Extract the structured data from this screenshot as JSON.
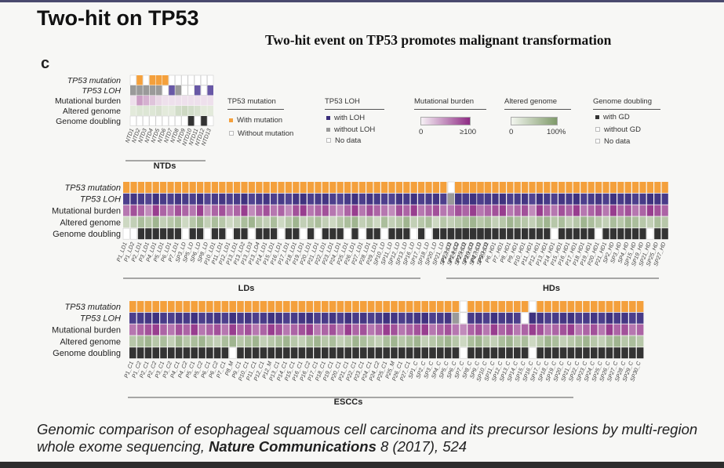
{
  "slide": {
    "title": "Two-hit on TP53",
    "subtitle": "Two-hit event on TP53 promotes malignant transformation",
    "panel_letter": "c"
  },
  "row_labels": [
    "TP53 mutation",
    "TP53 LOH",
    "Mutational burden",
    "Altered genome",
    "Genome doubling"
  ],
  "colors": {
    "mutation": "#f4a03c",
    "loh_dark": "#3a2d7a",
    "loh_gray": "#9a9a9a",
    "burden_low": "#f3eaf1",
    "burden_high": "#8e2b84",
    "altered_low": "#eef3e8",
    "altered_high": "#7f9a6a",
    "gd_dark": "#333333",
    "empty": "#eeeeee"
  },
  "groups": [
    {
      "name": "NTDs",
      "samples": [
        "NTD1",
        "NTD2",
        "NTD3",
        "NTD4",
        "NTD5",
        "NTD6",
        "NTD7",
        "NTD8",
        "NTD9",
        "NTD10",
        "NTD11",
        "NTD12",
        "NTD13"
      ],
      "mutation": [
        0,
        1,
        0,
        1,
        1,
        1,
        0,
        0,
        0,
        0,
        0,
        0,
        0
      ],
      "loh": [
        2,
        2,
        2,
        2,
        2,
        0,
        1,
        2,
        0,
        0,
        1,
        0,
        1
      ],
      "burden": [
        0.05,
        0.4,
        0.3,
        0.2,
        0.1,
        0.05,
        0.05,
        0.05,
        0.05,
        0.05,
        0.05,
        0.05,
        0.05
      ],
      "altered": [
        0.1,
        0.15,
        0.15,
        0.15,
        0.2,
        0.1,
        0.1,
        0.25,
        0.3,
        0.25,
        0.2,
        0.1,
        0.1
      ],
      "gd": [
        0,
        0,
        0,
        0,
        0,
        0,
        0,
        0,
        0,
        1,
        0,
        1,
        0
      ]
    },
    {
      "name": "LDs",
      "samples": [
        "P1_LD1",
        "P1_LD2",
        "P2_LD1",
        "P3_LD1",
        "P4_LD1",
        "P5_LD1",
        "P6_LD1",
        "P7_LD1",
        "SP3_LD",
        "SP5_LD",
        "SP6_LD",
        "SP8_LD",
        "P10_LD1",
        "P11_LD1",
        "P12_LD1",
        "P13_LD1",
        "P13_LD2",
        "P13_LD3",
        "P13_LD4",
        "P14_LD1",
        "P15_LD1",
        "P16_LD1",
        "P17_LD1",
        "P18_LD1",
        "P19_LD1",
        "P20_LD1",
        "P21_LD1",
        "P22_LD1",
        "P23_LD1",
        "P24_LD1",
        "P25_LD1",
        "P26_LD1",
        "P27_LD1",
        "P28_LD1",
        "P29_LD1",
        "SP10_LD",
        "SP11_LD",
        "SP12_LD",
        "SP13_LD",
        "SP16_LD",
        "SP17_LD",
        "SP18_LD",
        "SP20_LD",
        "SP21_LD",
        "SP22_LD",
        "SP24_LD",
        "SP25_LD",
        "SP26_LD",
        "SP27_LD",
        "SP30_LD"
      ],
      "mutation": [
        1,
        1,
        1,
        1,
        1,
        1,
        1,
        1,
        1,
        1,
        1,
        1,
        1,
        1,
        1,
        1,
        1,
        1,
        1,
        1,
        1,
        1,
        1,
        1,
        1,
        1,
        1,
        1,
        1,
        1,
        1,
        1,
        1,
        1,
        1,
        1,
        1,
        1,
        1,
        1,
        1,
        1,
        1,
        1,
        1,
        1,
        1,
        1,
        1,
        1
      ],
      "loh": [
        1,
        1,
        1,
        1,
        1,
        1,
        1,
        1,
        1,
        1,
        1,
        1,
        1,
        1,
        1,
        1,
        1,
        1,
        1,
        1,
        1,
        1,
        1,
        1,
        1,
        1,
        1,
        1,
        1,
        1,
        1,
        1,
        1,
        1,
        1,
        1,
        1,
        1,
        1,
        1,
        1,
        1,
        1,
        1,
        1,
        1,
        1,
        1,
        1,
        1
      ],
      "burden": [
        0.6,
        0.8,
        0.7,
        0.5,
        0.9,
        0.7,
        0.6,
        0.8,
        0.7,
        0.6,
        0.9,
        0.5,
        0.7,
        0.8,
        0.6,
        0.7,
        0.9,
        0.5,
        0.7,
        0.8,
        0.6,
        0.7,
        0.5,
        0.8,
        0.9,
        0.6,
        0.7,
        0.8,
        0.6,
        0.5,
        0.7,
        0.9,
        0.6,
        0.8,
        0.7,
        0.6,
        0.5,
        0.8,
        0.7,
        0.9,
        0.6,
        0.7,
        0.8,
        0.6,
        0.5,
        0.7,
        0.8,
        0.6,
        0.9,
        0.7
      ],
      "altered": [
        0.3,
        0.4,
        0.6,
        0.5,
        0.7,
        0.4,
        0.5,
        0.6,
        0.3,
        0.5,
        0.7,
        0.4,
        0.6,
        0.5,
        0.3,
        0.4,
        0.6,
        0.7,
        0.5,
        0.4,
        0.6,
        0.3,
        0.5,
        0.7,
        0.4,
        0.5,
        0.6,
        0.4,
        0.3,
        0.5,
        0.6,
        0.7,
        0.4,
        0.5,
        0.3,
        0.6,
        0.4,
        0.5,
        0.7,
        0.4,
        0.5,
        0.6,
        0.3,
        0.5,
        0.4,
        0.6,
        0.7,
        0.5,
        0.4,
        0.6
      ],
      "gd": [
        0,
        0,
        1,
        1,
        1,
        1,
        1,
        1,
        0,
        1,
        1,
        0,
        1,
        1,
        0,
        1,
        1,
        0,
        1,
        1,
        1,
        0,
        1,
        1,
        0,
        1,
        0,
        1,
        1,
        1,
        0,
        1,
        0,
        1,
        1,
        0,
        1,
        1,
        1,
        0,
        1,
        0,
        1,
        1,
        1,
        0,
        1,
        1,
        1,
        1
      ]
    },
    {
      "name": "HDs",
      "samples": [
        "P1_HD1",
        "P1_HD2",
        "P2_HD1",
        "P3_HD1",
        "P4_HD1",
        "P5_HD1",
        "P6_HD1",
        "P7_HD1",
        "P8_HD1",
        "P9_HD1",
        "P10_HD1",
        "P11_HD1",
        "P12_HD1",
        "P13_HD1",
        "P14_HD1",
        "P15_HD1",
        "P16_HD1",
        "P17_HD1",
        "P18_HD1",
        "P19_HD1",
        "P20_HD1",
        "P21_HD1",
        "SP2_HD",
        "SP3_HD",
        "SP4_HD",
        "SP15_HD",
        "SP19_HD",
        "SP21_HD",
        "SP25_HD",
        "SP27_HD"
      ],
      "mutation": [
        0,
        1,
        1,
        1,
        1,
        1,
        1,
        1,
        1,
        1,
        1,
        1,
        1,
        1,
        1,
        1,
        1,
        1,
        1,
        1,
        1,
        1,
        1,
        1,
        1,
        1,
        1,
        1,
        1,
        1
      ],
      "loh": [
        2,
        1,
        1,
        1,
        1,
        1,
        1,
        1,
        1,
        1,
        1,
        1,
        1,
        1,
        1,
        1,
        1,
        1,
        1,
        1,
        1,
        1,
        1,
        1,
        1,
        1,
        1,
        1,
        1,
        1
      ],
      "burden": [
        0.6,
        0.8,
        0.7,
        0.9,
        0.6,
        0.7,
        0.8,
        0.9,
        0.6,
        0.7,
        0.8,
        0.5,
        0.9,
        0.7,
        0.6,
        0.8,
        0.7,
        0.9,
        0.6,
        0.7,
        0.8,
        0.6,
        0.9,
        0.7,
        0.8,
        0.6,
        0.7,
        0.9,
        0.8,
        0.7
      ],
      "altered": [
        0.4,
        0.5,
        0.6,
        0.7,
        0.5,
        0.6,
        0.4,
        0.5,
        0.7,
        0.6,
        0.5,
        0.4,
        0.6,
        0.7,
        0.5,
        0.6,
        0.4,
        0.5,
        0.7,
        0.6,
        0.5,
        0.4,
        0.6,
        0.5,
        0.7,
        0.6,
        0.5,
        0.4,
        0.6,
        0.5
      ],
      "gd": [
        1,
        1,
        1,
        1,
        1,
        1,
        1,
        1,
        1,
        1,
        1,
        1,
        1,
        1,
        0,
        1,
        1,
        1,
        1,
        1,
        0,
        1,
        1,
        1,
        1,
        1,
        1,
        0,
        1,
        1
      ]
    },
    {
      "name": "ESCCs",
      "samples": [
        "P1_C1",
        "P1_C2",
        "P2_C1",
        "P2_C2",
        "P3_C1",
        "P3_C2",
        "P4_C1",
        "P4_C2",
        "P5_C1",
        "P5_C2",
        "P6_C1",
        "P6_C2",
        "P7_C1",
        "P8_M",
        "P9_C1",
        "P10_C1",
        "P11_C1",
        "P12_C1",
        "P12_M",
        "P13_C1",
        "P14_C1",
        "P15_C1",
        "P16_C1",
        "P16_C2",
        "P17_C1",
        "P18_C1",
        "P19_C1",
        "P20_C1",
        "P21_C1",
        "P22_C1",
        "P23_C1",
        "P24_C1",
        "P24_C2",
        "P25_C1",
        "P25_M",
        "P26_C1",
        "P27_C1",
        "SP1_C",
        "SP2_C",
        "SP3_C",
        "SP4_C",
        "SP5_C",
        "SP6_C",
        "SP7_C",
        "SP8_C",
        "SP9_C",
        "SP10_C",
        "SP11_C",
        "SP12_C",
        "SP13_C",
        "SP14_C",
        "SP15_C",
        "SP16_C",
        "SP17_C",
        "SP18_C",
        "SP19_C",
        "SP20_C",
        "SP21_C",
        "SP22_C",
        "SP23_C",
        "SP24_C",
        "SP25_C",
        "SP26_C",
        "SP27_C",
        "SP28_C",
        "SP29_C",
        "SP30_C"
      ],
      "mutation": [
        1,
        1,
        1,
        1,
        1,
        1,
        1,
        1,
        1,
        1,
        1,
        1,
        1,
        1,
        1,
        1,
        1,
        1,
        1,
        1,
        1,
        1,
        1,
        1,
        1,
        1,
        1,
        1,
        1,
        1,
        1,
        1,
        1,
        1,
        1,
        1,
        1,
        1,
        1,
        1,
        1,
        1,
        1,
        0,
        1,
        1,
        1,
        1,
        1,
        1,
        1,
        1,
        0,
        1,
        1,
        1,
        1,
        1,
        1,
        1,
        1,
        1,
        1,
        1,
        1,
        1,
        1
      ],
      "loh": [
        1,
        1,
        1,
        1,
        1,
        1,
        1,
        1,
        1,
        1,
        1,
        1,
        1,
        1,
        1,
        1,
        1,
        1,
        1,
        1,
        1,
        1,
        1,
        1,
        1,
        1,
        1,
        1,
        1,
        1,
        1,
        1,
        1,
        1,
        1,
        1,
        1,
        1,
        1,
        1,
        1,
        1,
        2,
        0,
        1,
        1,
        1,
        1,
        1,
        1,
        1,
        0,
        1,
        1,
        1,
        1,
        1,
        1,
        1,
        1,
        1,
        1,
        1,
        1,
        1,
        1,
        1
      ],
      "burden": [
        0.6,
        0.7,
        0.8,
        0.9,
        0.7,
        0.6,
        0.8,
        0.7,
        0.9,
        0.6,
        0.7,
        0.8,
        0.6,
        0.9,
        0.7,
        0.8,
        0.6,
        0.7,
        0.9,
        0.8,
        0.6,
        0.7,
        0.8,
        0.9,
        0.6,
        0.7,
        0.8,
        0.6,
        0.9,
        0.7,
        0.8,
        0.6,
        0.7,
        0.9,
        0.8,
        0.6,
        0.7,
        0.8,
        0.9,
        0.6,
        0.7,
        0.8,
        0.6,
        0.5,
        0.7,
        0.8,
        0.6,
        0.9,
        0.7,
        0.8,
        0.6,
        0.7,
        0.9,
        0.8,
        0.6,
        0.7,
        0.8,
        0.9,
        0.6,
        0.7,
        0.8,
        0.6,
        0.9,
        0.7,
        0.8,
        0.6,
        0.7
      ],
      "altered": [
        0.5,
        0.6,
        0.7,
        0.5,
        0.6,
        0.4,
        0.7,
        0.5,
        0.6,
        0.7,
        0.5,
        0.4,
        0.6,
        0.7,
        0.5,
        0.6,
        0.7,
        0.4,
        0.5,
        0.6,
        0.7,
        0.5,
        0.4,
        0.6,
        0.7,
        0.5,
        0.6,
        0.4,
        0.5,
        0.7,
        0.6,
        0.5,
        0.4,
        0.6,
        0.7,
        0.5,
        0.6,
        0.7,
        0.4,
        0.5,
        0.6,
        0.7,
        0.5,
        0.3,
        0.6,
        0.7,
        0.5,
        0.4,
        0.6,
        0.7,
        0.5,
        0.6,
        0.3,
        0.5,
        0.7,
        0.6,
        0.4,
        0.5,
        0.6,
        0.7,
        0.5,
        0.4,
        0.6,
        0.7,
        0.5,
        0.6,
        0.5
      ],
      "gd": [
        1,
        1,
        1,
        1,
        1,
        1,
        1,
        1,
        1,
        1,
        1,
        1,
        1,
        0,
        1,
        1,
        1,
        1,
        1,
        1,
        1,
        1,
        1,
        1,
        1,
        1,
        1,
        1,
        1,
        1,
        1,
        1,
        1,
        1,
        1,
        1,
        1,
        1,
        1,
        1,
        1,
        1,
        1,
        0,
        1,
        1,
        1,
        1,
        1,
        1,
        1,
        1,
        0,
        1,
        1,
        1,
        1,
        1,
        1,
        1,
        1,
        1,
        1,
        1,
        1,
        1,
        1
      ]
    }
  ],
  "legend": {
    "mutation": {
      "title": "TP53 mutation",
      "items": [
        "With mutation",
        "Without mutation"
      ]
    },
    "loh": {
      "title": "TP53 LOH",
      "items": [
        "with LOH",
        "without LOH",
        "No data"
      ]
    },
    "burden": {
      "title": "Mutational burden",
      "min": "0",
      "max": "≥100"
    },
    "altered": {
      "title": "Altered genome",
      "min": "0",
      "max": "100%"
    },
    "gd": {
      "title": "Genome doubling",
      "items": [
        "with GD",
        "without GD",
        "No data"
      ]
    }
  },
  "citation": {
    "text": "Genomic comparison of esophageal squamous cell carcinoma and its precursor lesions by multi-region whole exome sequencing,",
    "journal": "Nature Communications",
    "ref": "8 (2017), 524"
  }
}
